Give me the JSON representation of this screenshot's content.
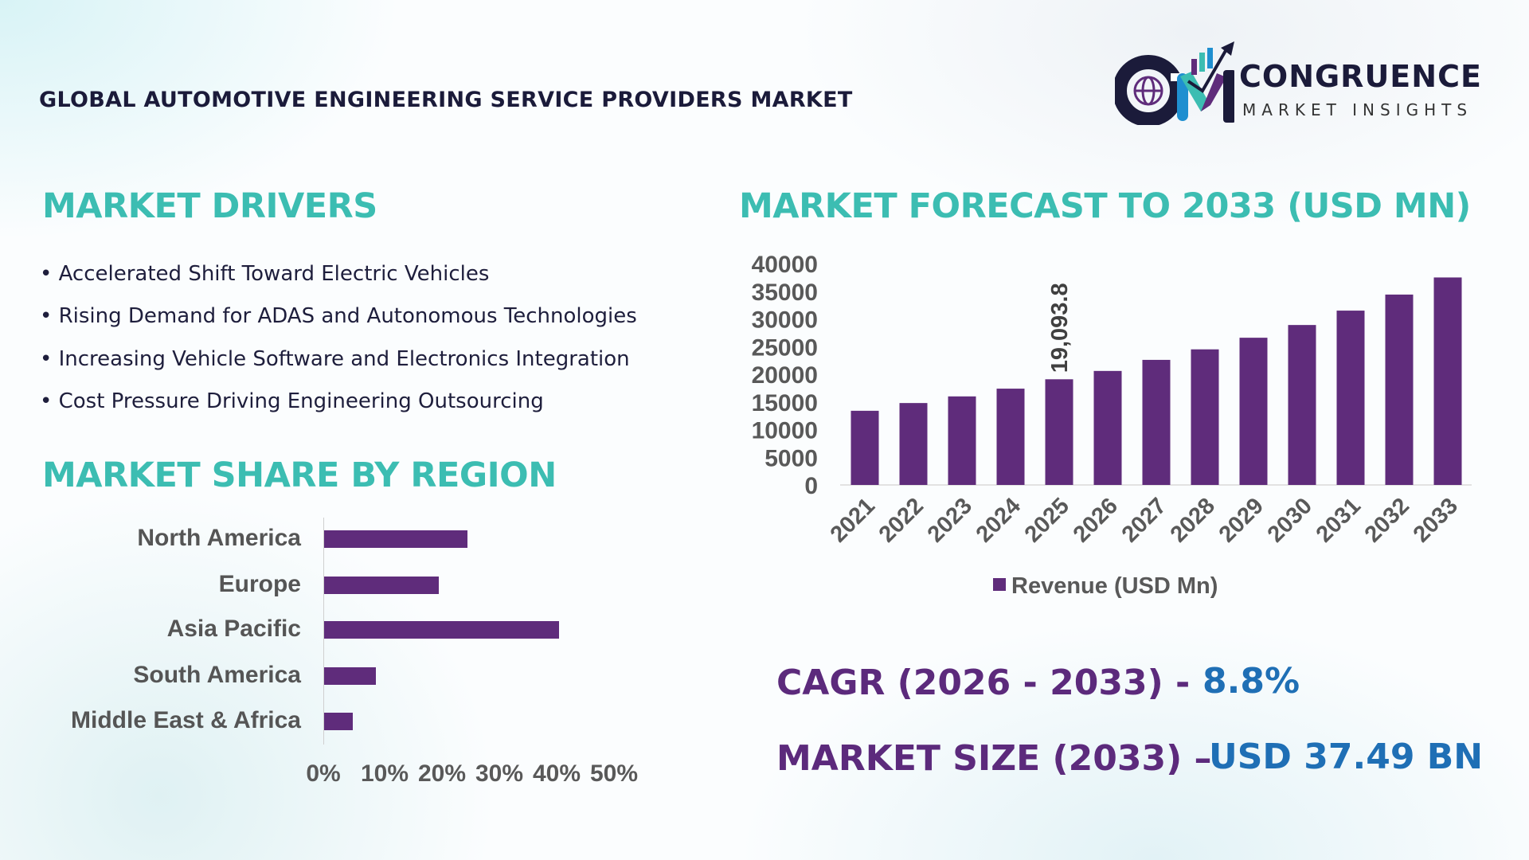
{
  "header": {
    "title": "GLOBAL AUTOMOTIVE ENGINEERING SERVICE PROVIDERS MARKET"
  },
  "logo": {
    "name": "CONGRUENCE",
    "tagline": "MARKET INSIGHTS",
    "initials": "CM"
  },
  "drivers": {
    "heading": "MARKET DRIVERS",
    "items": [
      "• Accelerated Shift Toward Electric Vehicles",
      "• Rising Demand for ADAS and Autonomous Technologies",
      "• Increasing Vehicle Software and Electronics Integration",
      "• Cost Pressure Driving Engineering Outsourcing"
    ]
  },
  "colors": {
    "bar": "#5f2c7b",
    "heading": "#3cbdb2",
    "cagr_label": "#5c2a7c",
    "value": "#1f6fb5"
  },
  "chart_data": [
    {
      "type": "bar",
      "orientation": "horizontal",
      "title": "MARKET SHARE BY REGION",
      "categories": [
        "North America",
        "Europe",
        "Asia Pacific",
        "South America",
        "Middle East & Africa"
      ],
      "values": [
        25,
        20,
        41,
        9,
        5
      ],
      "xlim": [
        0,
        50
      ],
      "xticks": [
        "0%",
        "10%",
        "20%",
        "30%",
        "40%",
        "50%"
      ],
      "grid": false
    },
    {
      "type": "bar",
      "title": "MARKET FORECAST TO 2033 (USD MN)",
      "categories": [
        "2021",
        "2022",
        "2023",
        "2024",
        "2025",
        "2026",
        "2027",
        "2028",
        "2029",
        "2030",
        "2031",
        "2032",
        "2033"
      ],
      "series": [
        {
          "name": "Revenue (USD Mn)",
          "values": [
            13400,
            14800,
            16000,
            17400,
            19093.8,
            20600,
            22600,
            24500,
            26600,
            28900,
            31500,
            34400,
            37490
          ]
        }
      ],
      "ylim": [
        0,
        40000
      ],
      "yticks": [
        "0",
        "5000",
        "10000",
        "15000",
        "20000",
        "25000",
        "30000",
        "35000",
        "40000"
      ],
      "data_labels": [
        {
          "category": "2025",
          "text": "19,093.8"
        }
      ],
      "legend": "bottom",
      "grid": false
    }
  ],
  "stats": {
    "cagr_label": "CAGR (2026 - 2033) -",
    "cagr_value": "8.8%",
    "size_label": "MARKET SIZE (2033) –",
    "size_value": "USD 37.49 BN"
  }
}
